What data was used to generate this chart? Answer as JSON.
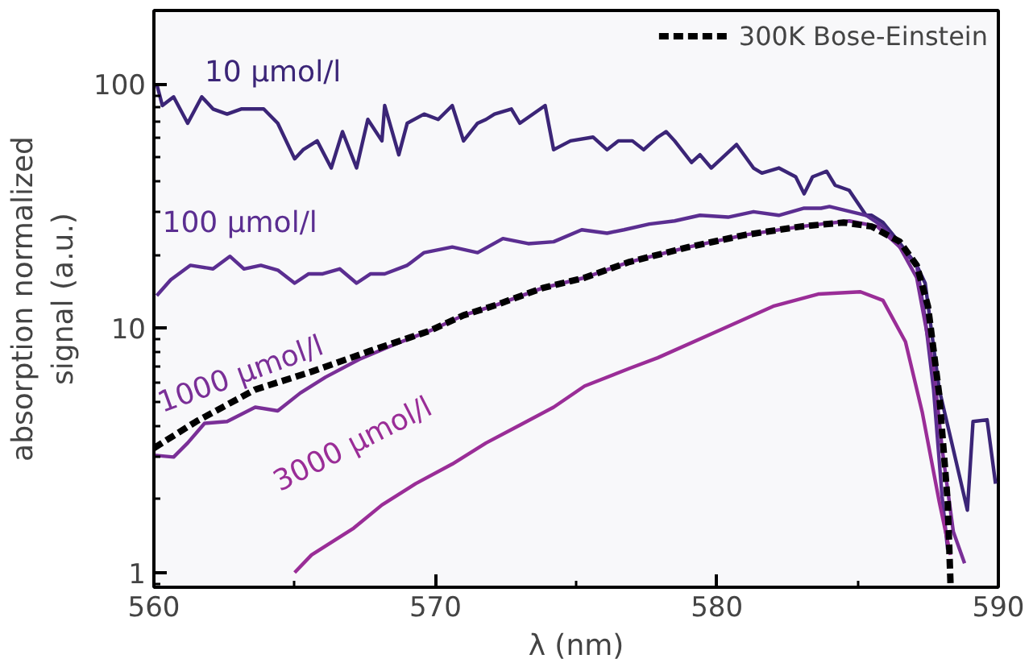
{
  "chart_data": {
    "type": "line",
    "xlabel": "λ (nm)",
    "ylabel": "absorption normalized\nsignal (a.u.)",
    "log": "y",
    "xlim": [
      560,
      590
    ],
    "ylim": [
      0.87,
      200
    ],
    "xticks": [
      560,
      {
        "value": 565,
        "label": null
      },
      570,
      {
        "value": 575,
        "label": null
      },
      580,
      {
        "value": 585,
        "label": null
      },
      590
    ],
    "yticks": [
      1,
      10,
      100
    ],
    "grid": false,
    "legend": "top right",
    "line_style": "solid",
    "marker": "none",
    "series": [
      {
        "name": "10 µmol/l",
        "color": "#3b2577",
        "x": [
          560.1,
          560.3,
          560.7,
          561.2,
          561.7,
          562.1,
          562.6,
          563.1,
          563.9,
          564.4,
          565.0,
          565.3,
          565.8,
          566.3,
          566.7,
          567.2,
          567.6,
          568.1,
          568.2,
          568.7,
          569.0,
          569.6,
          570.1,
          570.6,
          571.0,
          571.5,
          571.8,
          572.1,
          572.7,
          573.0,
          573.9,
          574.2,
          574.8,
          575.6,
          576.1,
          576.5,
          577.0,
          577.4,
          577.9,
          578.2,
          578.5,
          579.1,
          579.4,
          579.8,
          580.7,
          581.3,
          581.6,
          582.2,
          582.8,
          583.1,
          583.4,
          583.9,
          584.2,
          584.7,
          585.3,
          585.5,
          585.9,
          586.5,
          587.1,
          587.4,
          587.9,
          588.3,
          588.9,
          589.1,
          589.6,
          589.9
        ],
        "values": [
          100,
          81.6,
          88.6,
          69.1,
          88.6,
          79,
          75.3,
          79,
          79,
          69.1,
          49.4,
          53.8,
          58.5,
          45.3,
          63.8,
          45.3,
          71.6,
          58.5,
          81.6,
          51.3,
          69.1,
          75.3,
          71.6,
          81.6,
          58.5,
          69.1,
          71.6,
          75.3,
          79,
          69.1,
          81.6,
          53.8,
          58.5,
          60.6,
          53.8,
          58.5,
          58.5,
          53.8,
          60.6,
          63.8,
          58.5,
          47.7,
          51.3,
          45.3,
          56.5,
          45.3,
          43.2,
          45.3,
          41.7,
          35.5,
          41.7,
          43.9,
          38.5,
          36.7,
          29.0,
          29.0,
          27.1,
          22.3,
          18.1,
          15.3,
          5.61,
          3.57,
          1.8,
          4.15,
          4.22,
          2.31
        ]
      },
      {
        "name": "100 µmol/l",
        "color": "#5b2e91",
        "x": [
          560.1,
          560.6,
          561.3,
          562.1,
          562.7,
          563.2,
          563.8,
          564.4,
          565.0,
          565.5,
          566.0,
          566.6,
          567.2,
          567.7,
          568.2,
          569.0,
          569.6,
          570.6,
          571.5,
          572.4,
          573.3,
          574.2,
          575.2,
          576.1,
          576.7,
          577.6,
          578.5,
          579.4,
          580.4,
          581.3,
          582.2,
          583.1,
          583.7,
          584.0,
          585.3,
          585.9,
          586.5,
          587.1,
          587.4,
          587.7,
          588.0,
          588.2
        ],
        "values": [
          13.6,
          15.8,
          18.1,
          17.5,
          19.7,
          17.5,
          18.1,
          17.3,
          15.3,
          16.7,
          16.7,
          17.5,
          15.3,
          16.7,
          16.7,
          18.1,
          20.4,
          21.5,
          20.4,
          23.3,
          22.2,
          22.6,
          25.3,
          24.5,
          25.3,
          26.7,
          27.5,
          29.0,
          28.5,
          30.0,
          29.0,
          31.0,
          31.0,
          31.5,
          29.0,
          26.1,
          21.5,
          18.1,
          10.96,
          5.6,
          2.05,
          1.24
        ]
      },
      {
        "name": "1000 µmol/l",
        "color": "#7a2f97",
        "x": [
          560.0,
          560.7,
          561.2,
          561.8,
          562.6,
          563.6,
          564.4,
          565.2,
          566.1,
          567.3,
          568.5,
          569.8,
          571.0,
          572.2,
          573.8,
          575.3,
          576.9,
          579.0,
          581.0,
          583.0,
          584.7,
          585.7,
          586.5,
          587.1,
          587.7,
          588.0,
          588.4,
          588.8
        ],
        "values": [
          3.02,
          2.97,
          3.39,
          4.08,
          4.15,
          4.75,
          4.59,
          5.43,
          6.31,
          7.46,
          8.54,
          9.76,
          11.3,
          12.5,
          14.6,
          16.1,
          18.7,
          21.5,
          24.1,
          26.1,
          27.5,
          26.1,
          21.5,
          16.1,
          6.85,
          3.23,
          1.47,
          1.09
        ]
      },
      {
        "name": "3000 µmol/l",
        "color": "#9a2d97",
        "x": [
          565.0,
          565.6,
          567.1,
          568.1,
          569.3,
          570.6,
          571.8,
          573.0,
          574.2,
          575.3,
          576.9,
          577.9,
          579.9,
          582.0,
          583.6,
          585.1,
          585.9,
          586.7,
          587.3,
          587.9,
          588.3
        ],
        "values": [
          1.0,
          1.18,
          1.52,
          1.89,
          2.31,
          2.78,
          3.39,
          4.01,
          4.75,
          5.8,
          6.85,
          7.57,
          9.59,
          12.3,
          13.8,
          14.1,
          13.0,
          8.8,
          4.51,
          1.95,
          1.18
        ]
      },
      {
        "name": "300K Bose-Einstein",
        "color": "#000000",
        "line_style": "dashed",
        "x": [
          560.0,
          561.5,
          563.6,
          565.6,
          567.7,
          569.8,
          571.0,
          572.2,
          573.8,
          575.3,
          576.9,
          579.0,
          581.0,
          583.0,
          584.5,
          585.5,
          586.5,
          587.1,
          587.5,
          587.9,
          588.2,
          588.3
        ],
        "values": [
          3.23,
          4.15,
          5.61,
          6.64,
          8.09,
          9.76,
          11.3,
          12.5,
          14.6,
          16.1,
          18.7,
          21.5,
          24.1,
          26.1,
          27.1,
          26.1,
          22.6,
          18.1,
          12.3,
          5.34,
          1.95,
          0.9
        ]
      }
    ]
  }
}
